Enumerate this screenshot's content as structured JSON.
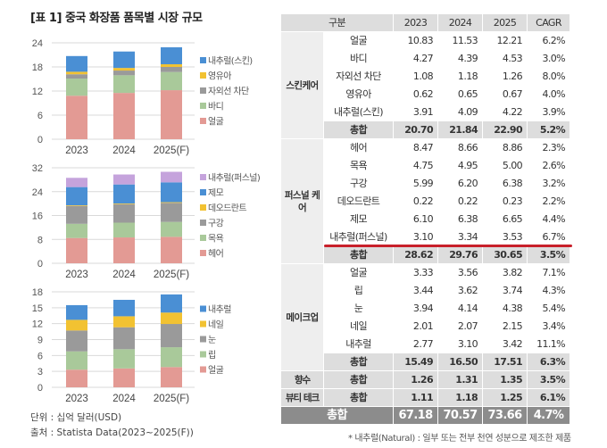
{
  "title": "[표 1] 중국 화장품 품목별 시장 규모",
  "footer": {
    "unit": "단위 : 십억 달러(USD)",
    "source": "출처 : Statista Data(2023~2025(F))"
  },
  "chart_data": [
    {
      "type": "bar",
      "stacked": true,
      "categories": [
        "2023",
        "2024",
        "2025(F)"
      ],
      "ylim": [
        0,
        24
      ],
      "yticks": [
        0,
        6,
        12,
        18,
        24
      ],
      "grid": true,
      "legend": "right",
      "series": [
        {
          "name": "얼굴",
          "color": "#e39a94",
          "values": [
            10.83,
            11.53,
            12.21
          ]
        },
        {
          "name": "바디",
          "color": "#a9c99a",
          "values": [
            4.27,
            4.39,
            4.53
          ]
        },
        {
          "name": "자외선 차단",
          "color": "#9a9a9a",
          "values": [
            1.08,
            1.18,
            1.26
          ]
        },
        {
          "name": "영유아",
          "color": "#f2c232",
          "values": [
            0.62,
            0.65,
            0.67
          ]
        },
        {
          "name": "내추럴(스킨)",
          "color": "#4a8fd4",
          "values": [
            3.91,
            4.09,
            4.22
          ]
        }
      ]
    },
    {
      "type": "bar",
      "stacked": true,
      "categories": [
        "2023",
        "2024",
        "2025(F)"
      ],
      "ylim": [
        0,
        32
      ],
      "yticks": [
        0,
        8,
        16,
        24,
        32
      ],
      "grid": true,
      "legend": "right",
      "series": [
        {
          "name": "헤어",
          "color": "#e39a94",
          "values": [
            8.47,
            8.66,
            8.86
          ]
        },
        {
          "name": "목욕",
          "color": "#a9c99a",
          "values": [
            4.75,
            4.95,
            5.0
          ]
        },
        {
          "name": "구강",
          "color": "#9a9a9a",
          "values": [
            5.99,
            6.2,
            6.38
          ]
        },
        {
          "name": "데오드란트",
          "color": "#f2c232",
          "values": [
            0.22,
            0.22,
            0.23
          ]
        },
        {
          "name": "제모",
          "color": "#4a8fd4",
          "values": [
            6.1,
            6.38,
            6.65
          ]
        },
        {
          "name": "내추럴(퍼스널)",
          "color": "#c5a3dc",
          "values": [
            3.1,
            3.34,
            3.53
          ]
        }
      ]
    },
    {
      "type": "bar",
      "stacked": true,
      "categories": [
        "2023",
        "2024",
        "2025(F)"
      ],
      "ylim": [
        0,
        18
      ],
      "yticks": [
        0,
        3,
        6,
        9,
        12,
        15,
        18
      ],
      "grid": true,
      "legend": "right",
      "series": [
        {
          "name": "얼굴",
          "color": "#e39a94",
          "values": [
            3.33,
            3.56,
            3.82
          ]
        },
        {
          "name": "립",
          "color": "#a9c99a",
          "values": [
            3.44,
            3.62,
            3.74
          ]
        },
        {
          "name": "눈",
          "color": "#9a9a9a",
          "values": [
            3.94,
            4.14,
            4.38
          ]
        },
        {
          "name": "네일",
          "color": "#f2c232",
          "values": [
            2.01,
            2.07,
            2.15
          ]
        },
        {
          "name": "내추럴",
          "color": "#4a8fd4",
          "values": [
            2.77,
            3.1,
            3.42
          ]
        }
      ]
    }
  ],
  "table": {
    "headers": [
      "구분",
      "2023",
      "2024",
      "2025",
      "CAGR"
    ],
    "groups": [
      {
        "name": "스킨케어",
        "rows": [
          [
            "얼굴",
            "10.83",
            "11.53",
            "12.21",
            "6.2%"
          ],
          [
            "바디",
            "4.27",
            "4.39",
            "4.53",
            "3.0%"
          ],
          [
            "자외선 차단",
            "1.08",
            "1.18",
            "1.26",
            "8.0%"
          ],
          [
            "영유아",
            "0.62",
            "0.65",
            "0.67",
            "4.0%"
          ],
          [
            "내추럴(스킨)",
            "3.91",
            "4.09",
            "4.22",
            "3.9%"
          ]
        ],
        "subtotal": [
          "총합",
          "20.70",
          "21.84",
          "22.90",
          "5.2%"
        ]
      },
      {
        "name": "퍼스널 케어",
        "rows": [
          [
            "헤어",
            "8.47",
            "8.66",
            "8.86",
            "2.3%"
          ],
          [
            "목욕",
            "4.75",
            "4.95",
            "5.00",
            "2.6%"
          ],
          [
            "구강",
            "5.99",
            "6.20",
            "6.38",
            "3.2%"
          ],
          [
            "데오드란트",
            "0.22",
            "0.22",
            "0.23",
            "2.2%"
          ],
          [
            "제모",
            "6.10",
            "6.38",
            "6.65",
            "4.4%"
          ],
          [
            "내추럴(퍼스널)",
            "3.10",
            "3.34",
            "3.53",
            "6.7%"
          ]
        ],
        "subtotal": [
          "총합",
          "28.62",
          "29.76",
          "30.65",
          "3.5%"
        ]
      },
      {
        "name": "메이크업",
        "rows": [
          [
            "얼굴",
            "3.33",
            "3.56",
            "3.82",
            "7.1%"
          ],
          [
            "립",
            "3.44",
            "3.62",
            "3.74",
            "4.3%"
          ],
          [
            "눈",
            "3.94",
            "4.14",
            "4.38",
            "5.4%"
          ],
          [
            "네일",
            "2.01",
            "2.07",
            "2.15",
            "3.4%"
          ],
          [
            "내추럴",
            "2.77",
            "3.10",
            "3.42",
            "11.1%"
          ]
        ],
        "subtotal": [
          "총합",
          "15.49",
          "16.50",
          "17.51",
          "6.3%"
        ]
      },
      {
        "name": "향수",
        "rows": [],
        "subtotal": [
          "총합",
          "1.26",
          "1.31",
          "1.35",
          "3.5%"
        ]
      },
      {
        "name": "뷰티 테크",
        "rows": [],
        "subtotal": [
          "총합",
          "1.11",
          "1.18",
          "1.25",
          "6.1%"
        ]
      }
    ],
    "total": [
      "총합",
      "67.18",
      "70.57",
      "73.66",
      "4.7%"
    ],
    "highlight_color": "#c8202a"
  },
  "note": "* 내추럴(Natural) : 일부 또는 전부 천연 성분으로 제조한 제품"
}
